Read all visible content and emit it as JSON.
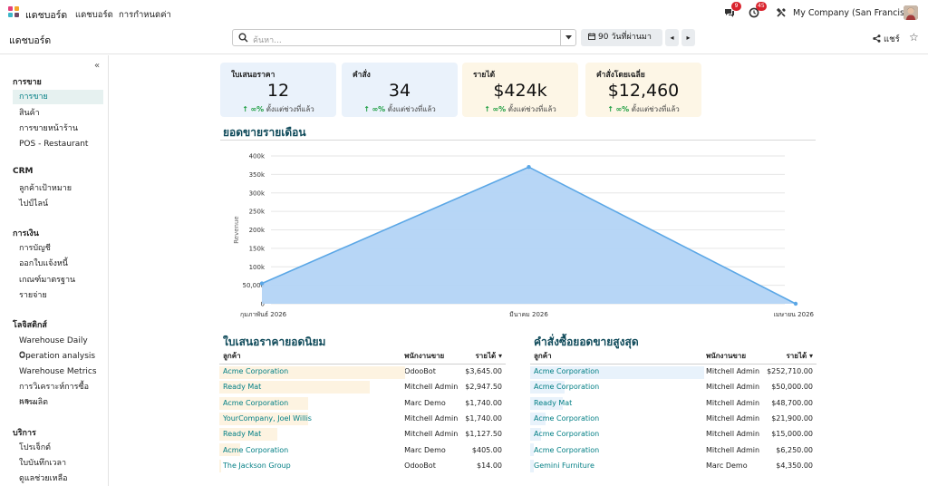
{
  "navbar": {
    "app_title": "แดชบอร์ด",
    "menu": [
      "แดชบอร์ด",
      "การกำหนดค่า"
    ],
    "chat_badge": "9",
    "activity_badge": "45",
    "company": "My Company (San Francisco)"
  },
  "control": {
    "breadcrumb": "แดชบอร์ด",
    "search_placeholder": "ค้นหา...",
    "date_filter": "90 วันที่ผ่านมา",
    "share_label": "แชร์"
  },
  "sidebar": {
    "sections": [
      {
        "title": "การขาย",
        "items": [
          "การขาย",
          "สินค้า",
          "การขายหน้าร้าน",
          "POS - Restaurant"
        ]
      },
      {
        "title": "CRM",
        "items": [
          "ลูกค้าเป้าหมาย",
          "ไปป์ไลน์"
        ]
      },
      {
        "title": "การเงิน",
        "items": [
          "การบัญชี",
          "ออกใบแจ้งหนี้",
          "เกณฑ์มาตรฐาน",
          "รายจ่าย"
        ]
      },
      {
        "title": "โลจิสติกส์",
        "items": [
          "Warehouse Daily O...",
          "Operation analysis",
          "Warehouse Metrics",
          "การวิเคราะห์การซื้อแล...",
          "การผลิต"
        ]
      },
      {
        "title": "บริการ",
        "items": [
          "โปรเจ็กต์",
          "ใบบันทึกเวลา",
          "ดูแลช่วยเหลือ"
        ]
      }
    ],
    "active_item": "การขาย"
  },
  "kpis": [
    {
      "title": "ใบเสนอราคา",
      "value": "12",
      "delta": "∞%",
      "period": "ตั้งแต่ช่วงที่แล้ว",
      "bg": "#eaf2fb"
    },
    {
      "title": "คำสั่ง",
      "value": "34",
      "delta": "∞%",
      "period": "ตั้งแต่ช่วงที่แล้ว",
      "bg": "#eaf2fb"
    },
    {
      "title": "รายได้",
      "value": "$424k",
      "delta": "∞%",
      "period": "ตั้งแต่ช่วงที่แล้ว",
      "bg": "#fdf6e6"
    },
    {
      "title": "คำสั่งโดยเฉลี่ย",
      "value": "$12,460",
      "delta": "∞%",
      "period": "ตั้งแต่ช่วงที่แล้ว",
      "bg": "#fdf6e6"
    }
  ],
  "monthly": {
    "heading": "ยอดขายรายเดือน",
    "chart_data": {
      "type": "area",
      "categories": [
        "กุมภาพันธ์ 2026",
        "มีนาคม 2026",
        "เมษายน 2026"
      ],
      "series": [
        {
          "values": [
            55000,
            370000,
            0
          ]
        }
      ],
      "ylabel": "Revenue",
      "ylim": [
        0,
        400000
      ],
      "yticks": [
        "0",
        "50,000",
        "100k",
        "150k",
        "200k",
        "250k",
        "300k",
        "350k",
        "400k"
      ],
      "grid": true,
      "colors": {
        "fill": "#b3d4f5",
        "line": "#5ba7e6"
      }
    }
  },
  "quotes": {
    "heading": "ใบเสนอราคายอดนิยม",
    "columns": [
      "ลูกค้า",
      "พนักงานขาย",
      "รายได้"
    ],
    "rows": [
      {
        "customer": "Acme Corporation",
        "salesperson": "OdooBot",
        "revenue": "$3,645.00",
        "share": 1.0
      },
      {
        "customer": "Ready Mat",
        "salesperson": "Mitchell Admin",
        "revenue": "$2,947.50",
        "share": 0.81
      },
      {
        "customer": "Acme Corporation",
        "salesperson": "Marc Demo",
        "revenue": "$1,740.00",
        "share": 0.48
      },
      {
        "customer": "YourCompany, Joel Willis",
        "salesperson": "Mitchell Admin",
        "revenue": "$1,740.00",
        "share": 0.48
      },
      {
        "customer": "Ready Mat",
        "salesperson": "Mitchell Admin",
        "revenue": "$1,127.50",
        "share": 0.31
      },
      {
        "customer": "Acme Corporation",
        "salesperson": "Marc Demo",
        "revenue": "$405.00",
        "share": 0.11
      },
      {
        "customer": "The Jackson Group",
        "salesperson": "OdooBot",
        "revenue": "$14.00",
        "share": 0.0
      }
    ]
  },
  "orders": {
    "heading": "คำสั่งซื้อยอดขายสูงสุด",
    "columns": [
      "ลูกค้า",
      "พนักงานขาย",
      "รายได้"
    ],
    "rows": [
      {
        "customer": "Acme Corporation",
        "salesperson": "Mitchell Admin",
        "revenue": "$252,710.00",
        "share": 1.0
      },
      {
        "customer": "Acme Corporation",
        "salesperson": "Mitchell Admin",
        "revenue": "$50,000.00",
        "share": 0.2
      },
      {
        "customer": "Ready Mat",
        "salesperson": "Mitchell Admin",
        "revenue": "$48,700.00",
        "share": 0.19
      },
      {
        "customer": "Acme Corporation",
        "salesperson": "Mitchell Admin",
        "revenue": "$21,900.00",
        "share": 0.09
      },
      {
        "customer": "Acme Corporation",
        "salesperson": "Mitchell Admin",
        "revenue": "$15,000.00",
        "share": 0.06
      },
      {
        "customer": "Acme Corporation",
        "salesperson": "Mitchell Admin",
        "revenue": "$6,250.00",
        "share": 0.02
      },
      {
        "customer": "Gemini Furniture",
        "salesperson": "Marc Demo",
        "revenue": "$4,350.00",
        "share": 0.02
      }
    ]
  }
}
